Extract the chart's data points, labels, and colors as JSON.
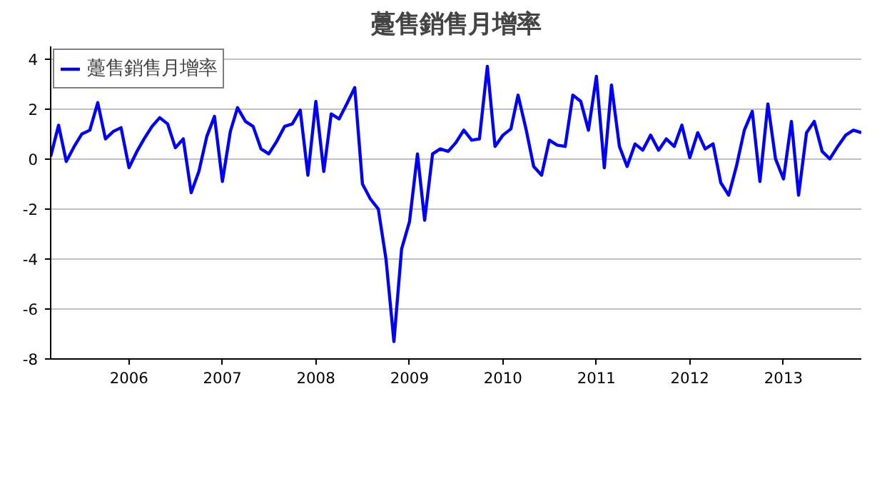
{
  "chart_data": {
    "type": "line",
    "title": "躉售銷售月增率",
    "x": [
      "2005-03",
      "2005-04",
      "2005-05",
      "2005-06",
      "2005-07",
      "2005-08",
      "2005-09",
      "2005-10",
      "2005-11",
      "2005-12",
      "2006-01",
      "2006-02",
      "2006-03",
      "2006-04",
      "2006-05",
      "2006-06",
      "2006-07",
      "2006-08",
      "2006-09",
      "2006-10",
      "2006-11",
      "2006-12",
      "2007-01",
      "2007-02",
      "2007-03",
      "2007-04",
      "2007-05",
      "2007-06",
      "2007-07",
      "2007-08",
      "2007-09",
      "2007-10",
      "2007-11",
      "2007-12",
      "2008-01",
      "2008-02",
      "2008-03",
      "2008-04",
      "2008-05",
      "2008-06",
      "2008-07",
      "2008-08",
      "2008-09",
      "2008-10",
      "2008-11",
      "2008-12",
      "2009-01",
      "2009-02",
      "2009-03",
      "2009-04",
      "2009-05",
      "2009-06",
      "2009-07",
      "2009-08",
      "2009-09",
      "2009-10",
      "2009-11",
      "2009-12",
      "2010-01",
      "2010-02",
      "2010-03",
      "2010-04",
      "2010-05",
      "2010-06",
      "2010-07",
      "2010-08",
      "2010-09",
      "2010-10",
      "2010-11",
      "2010-12",
      "2011-01",
      "2011-02",
      "2011-03",
      "2011-04",
      "2011-05",
      "2011-06",
      "2011-07",
      "2011-08",
      "2011-09",
      "2011-10",
      "2011-11",
      "2011-12",
      "2012-01",
      "2012-02",
      "2012-03",
      "2012-04",
      "2012-05",
      "2012-06",
      "2012-07",
      "2012-08",
      "2012-09",
      "2012-10",
      "2012-11",
      "2012-12",
      "2013-01",
      "2013-02",
      "2013-03",
      "2013-04",
      "2013-05",
      "2013-06",
      "2013-07",
      "2013-08",
      "2013-09",
      "2013-10",
      "2013-11"
    ],
    "series": [
      {
        "name": "躉售銷售月增率",
        "color": "#0000ff",
        "values": [
          0.1,
          1.35,
          -0.1,
          0.5,
          1.0,
          1.15,
          2.25,
          0.8,
          1.1,
          1.25,
          -0.35,
          0.3,
          0.8,
          1.3,
          1.65,
          1.4,
          0.45,
          0.8,
          -1.35,
          -0.5,
          0.9,
          1.7,
          -0.9,
          1.1,
          2.05,
          1.5,
          1.3,
          0.4,
          0.2,
          0.7,
          1.3,
          1.4,
          1.95,
          -0.65,
          2.3,
          -0.5,
          1.8,
          1.6,
          2.2,
          2.85,
          -1.0,
          -1.6,
          -2.0,
          -4.0,
          -7.3,
          -3.6,
          -2.5,
          0.2,
          -2.45,
          0.2,
          0.4,
          0.3,
          0.65,
          1.15,
          0.75,
          0.8,
          3.7,
          0.5,
          0.95,
          1.2,
          2.55,
          1.2,
          -0.3,
          -0.65,
          0.75,
          0.55,
          0.5,
          2.55,
          2.3,
          1.15,
          3.3,
          -0.35,
          2.95,
          0.5,
          -0.3,
          0.6,
          0.35,
          0.95,
          0.35,
          0.8,
          0.5,
          1.35,
          0.05,
          1.05,
          0.4,
          0.6,
          -0.95,
          -1.45,
          -0.3,
          1.15,
          1.9,
          -0.9,
          2.2,
          0.0,
          -0.8,
          1.5,
          -1.45,
          1.05,
          1.5,
          0.3,
          0.0,
          0.5,
          0.95,
          1.15,
          1.05
        ]
      }
    ],
    "xlim": [
      "2005-03",
      "2013-11"
    ],
    "xticks": [
      "2006",
      "2007",
      "2008",
      "2009",
      "2010",
      "2011",
      "2012",
      "2013"
    ],
    "ylim": [
      -8,
      4.5
    ],
    "yticks": [
      -8,
      -6,
      -4,
      -2,
      0,
      2,
      4
    ],
    "grid": "y",
    "legend": "top left",
    "marker": "none",
    "line_style": "solid"
  }
}
